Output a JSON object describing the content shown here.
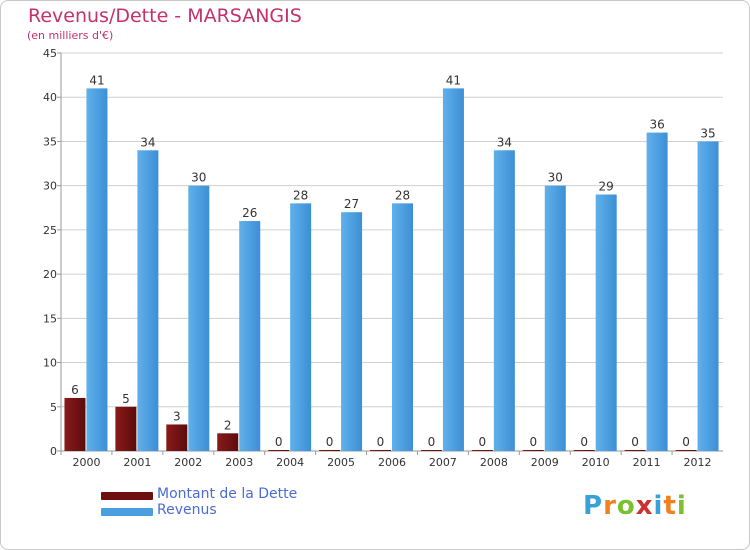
{
  "title": "Revenus/Dette - MARSANGIS",
  "subtitle": "(en milliers d'€)",
  "colors": {
    "title": "#c5306f",
    "dette": "#6e1010",
    "revenus": "#4a9fe0",
    "grid": "#d0d0d0",
    "legend_text": "#4a6cd4"
  },
  "legend": {
    "dette_label": "Montant de la Dette",
    "revenus_label": "Revenus"
  },
  "logo": {
    "text": "Proxiti",
    "letters": [
      "P",
      "r",
      "o",
      "x",
      "i",
      "t",
      "i"
    ],
    "letter_colors": [
      "#3aa0d8",
      "#f08020",
      "#7cbf30",
      "#d03030",
      "#3aa0d8",
      "#f08020",
      "#7cbf30"
    ]
  },
  "chart_data": {
    "type": "bar",
    "categories": [
      "2000",
      "2001",
      "2002",
      "2003",
      "2004",
      "2005",
      "2006",
      "2007",
      "2008",
      "2009",
      "2010",
      "2011",
      "2012"
    ],
    "series": [
      {
        "name": "Montant de la Dette",
        "values": [
          6,
          5,
          3,
          2,
          0,
          0,
          0,
          0,
          0,
          0,
          0,
          0,
          0
        ]
      },
      {
        "name": "Revenus",
        "values": [
          41,
          34,
          30,
          26,
          28,
          27,
          28,
          41,
          34,
          30,
          29,
          36,
          35
        ]
      }
    ],
    "y_ticks": [
      0,
      5,
      10,
      15,
      20,
      25,
      30,
      35,
      40,
      45
    ],
    "ylim": [
      0,
      45
    ],
    "grid": true,
    "legend_position": "bottom-left"
  }
}
